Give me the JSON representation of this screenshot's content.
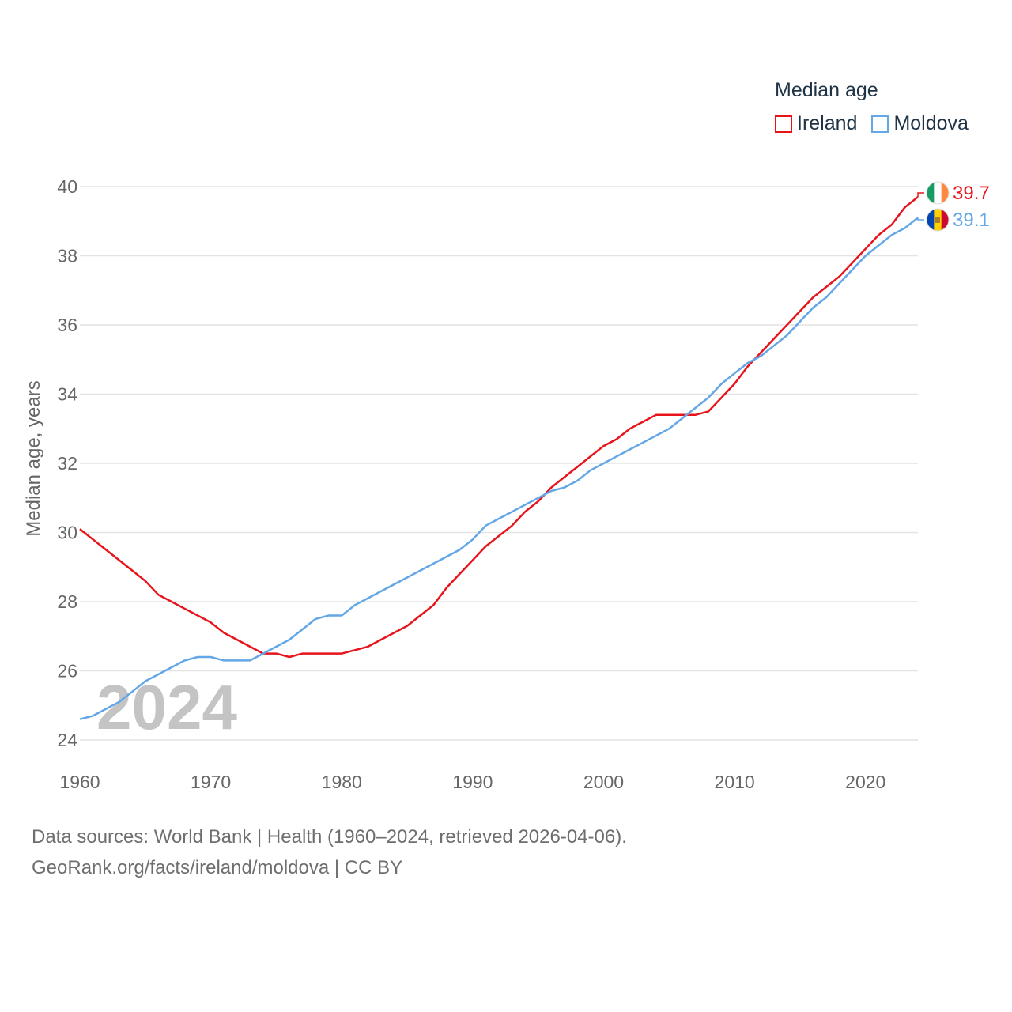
{
  "legend": {
    "title": "Median age",
    "items": [
      {
        "name": "Ireland",
        "color": "#e8141b"
      },
      {
        "name": "Moldova",
        "color": "#63a7e6"
      }
    ]
  },
  "footer": {
    "line1": "Data sources: World Bank | Health (1960–2024, retrieved 2026-04-06).",
    "line2": "GeoRank.org/facts/ireland/moldova | CC BY"
  },
  "year_label": "2024",
  "chart_data": {
    "type": "line",
    "title": "Median age",
    "xlabel": "",
    "ylabel": "Median age, years",
    "xlim": [
      1960,
      2024
    ],
    "ylim": [
      24,
      40
    ],
    "xticks": [
      1960,
      1970,
      1980,
      1990,
      2000,
      2010,
      2020
    ],
    "yticks": [
      24,
      26,
      28,
      30,
      32,
      34,
      36,
      38,
      40
    ],
    "grid": true,
    "legend_position": "top-right",
    "x": [
      1960,
      1961,
      1962,
      1963,
      1964,
      1965,
      1966,
      1967,
      1968,
      1969,
      1970,
      1971,
      1972,
      1973,
      1974,
      1975,
      1976,
      1977,
      1978,
      1979,
      1980,
      1981,
      1982,
      1983,
      1984,
      1985,
      1986,
      1987,
      1988,
      1989,
      1990,
      1991,
      1992,
      1993,
      1994,
      1995,
      1996,
      1997,
      1998,
      1999,
      2000,
      2001,
      2002,
      2003,
      2004,
      2005,
      2006,
      2007,
      2008,
      2009,
      2010,
      2011,
      2012,
      2013,
      2014,
      2015,
      2016,
      2017,
      2018,
      2019,
      2020,
      2021,
      2022,
      2023,
      2024
    ],
    "series": [
      {
        "name": "Ireland",
        "color": "#e8141b",
        "end_label": "39.7",
        "values": [
          30.1,
          29.8,
          29.5,
          29.2,
          28.9,
          28.6,
          28.2,
          28.0,
          27.8,
          27.6,
          27.4,
          27.1,
          26.9,
          26.7,
          26.5,
          26.5,
          26.4,
          26.5,
          26.5,
          26.5,
          26.5,
          26.6,
          26.7,
          26.9,
          27.1,
          27.3,
          27.6,
          27.9,
          28.4,
          28.8,
          29.2,
          29.6,
          29.9,
          30.2,
          30.6,
          30.9,
          31.3,
          31.6,
          31.9,
          32.2,
          32.5,
          32.7,
          33.0,
          33.2,
          33.4,
          33.4,
          33.4,
          33.4,
          33.5,
          33.9,
          34.3,
          34.8,
          35.2,
          35.6,
          36.0,
          36.4,
          36.8,
          37.1,
          37.4,
          37.8,
          38.2,
          38.6,
          38.9,
          39.4,
          39.7
        ]
      },
      {
        "name": "Moldova",
        "color": "#63a7e6",
        "end_label": "39.1",
        "values": [
          24.6,
          24.7,
          24.9,
          25.1,
          25.4,
          25.7,
          25.9,
          26.1,
          26.3,
          26.4,
          26.4,
          26.3,
          26.3,
          26.3,
          26.5,
          26.7,
          26.9,
          27.2,
          27.5,
          27.6,
          27.6,
          27.9,
          28.1,
          28.3,
          28.5,
          28.7,
          28.9,
          29.1,
          29.3,
          29.5,
          29.8,
          30.2,
          30.4,
          30.6,
          30.8,
          31.0,
          31.2,
          31.3,
          31.5,
          31.8,
          32.0,
          32.2,
          32.4,
          32.6,
          32.8,
          33.0,
          33.3,
          33.6,
          33.9,
          34.3,
          34.6,
          34.9,
          35.1,
          35.4,
          35.7,
          36.1,
          36.5,
          36.8,
          37.2,
          37.6,
          38.0,
          38.3,
          38.6,
          38.8,
          39.1
        ]
      }
    ]
  }
}
